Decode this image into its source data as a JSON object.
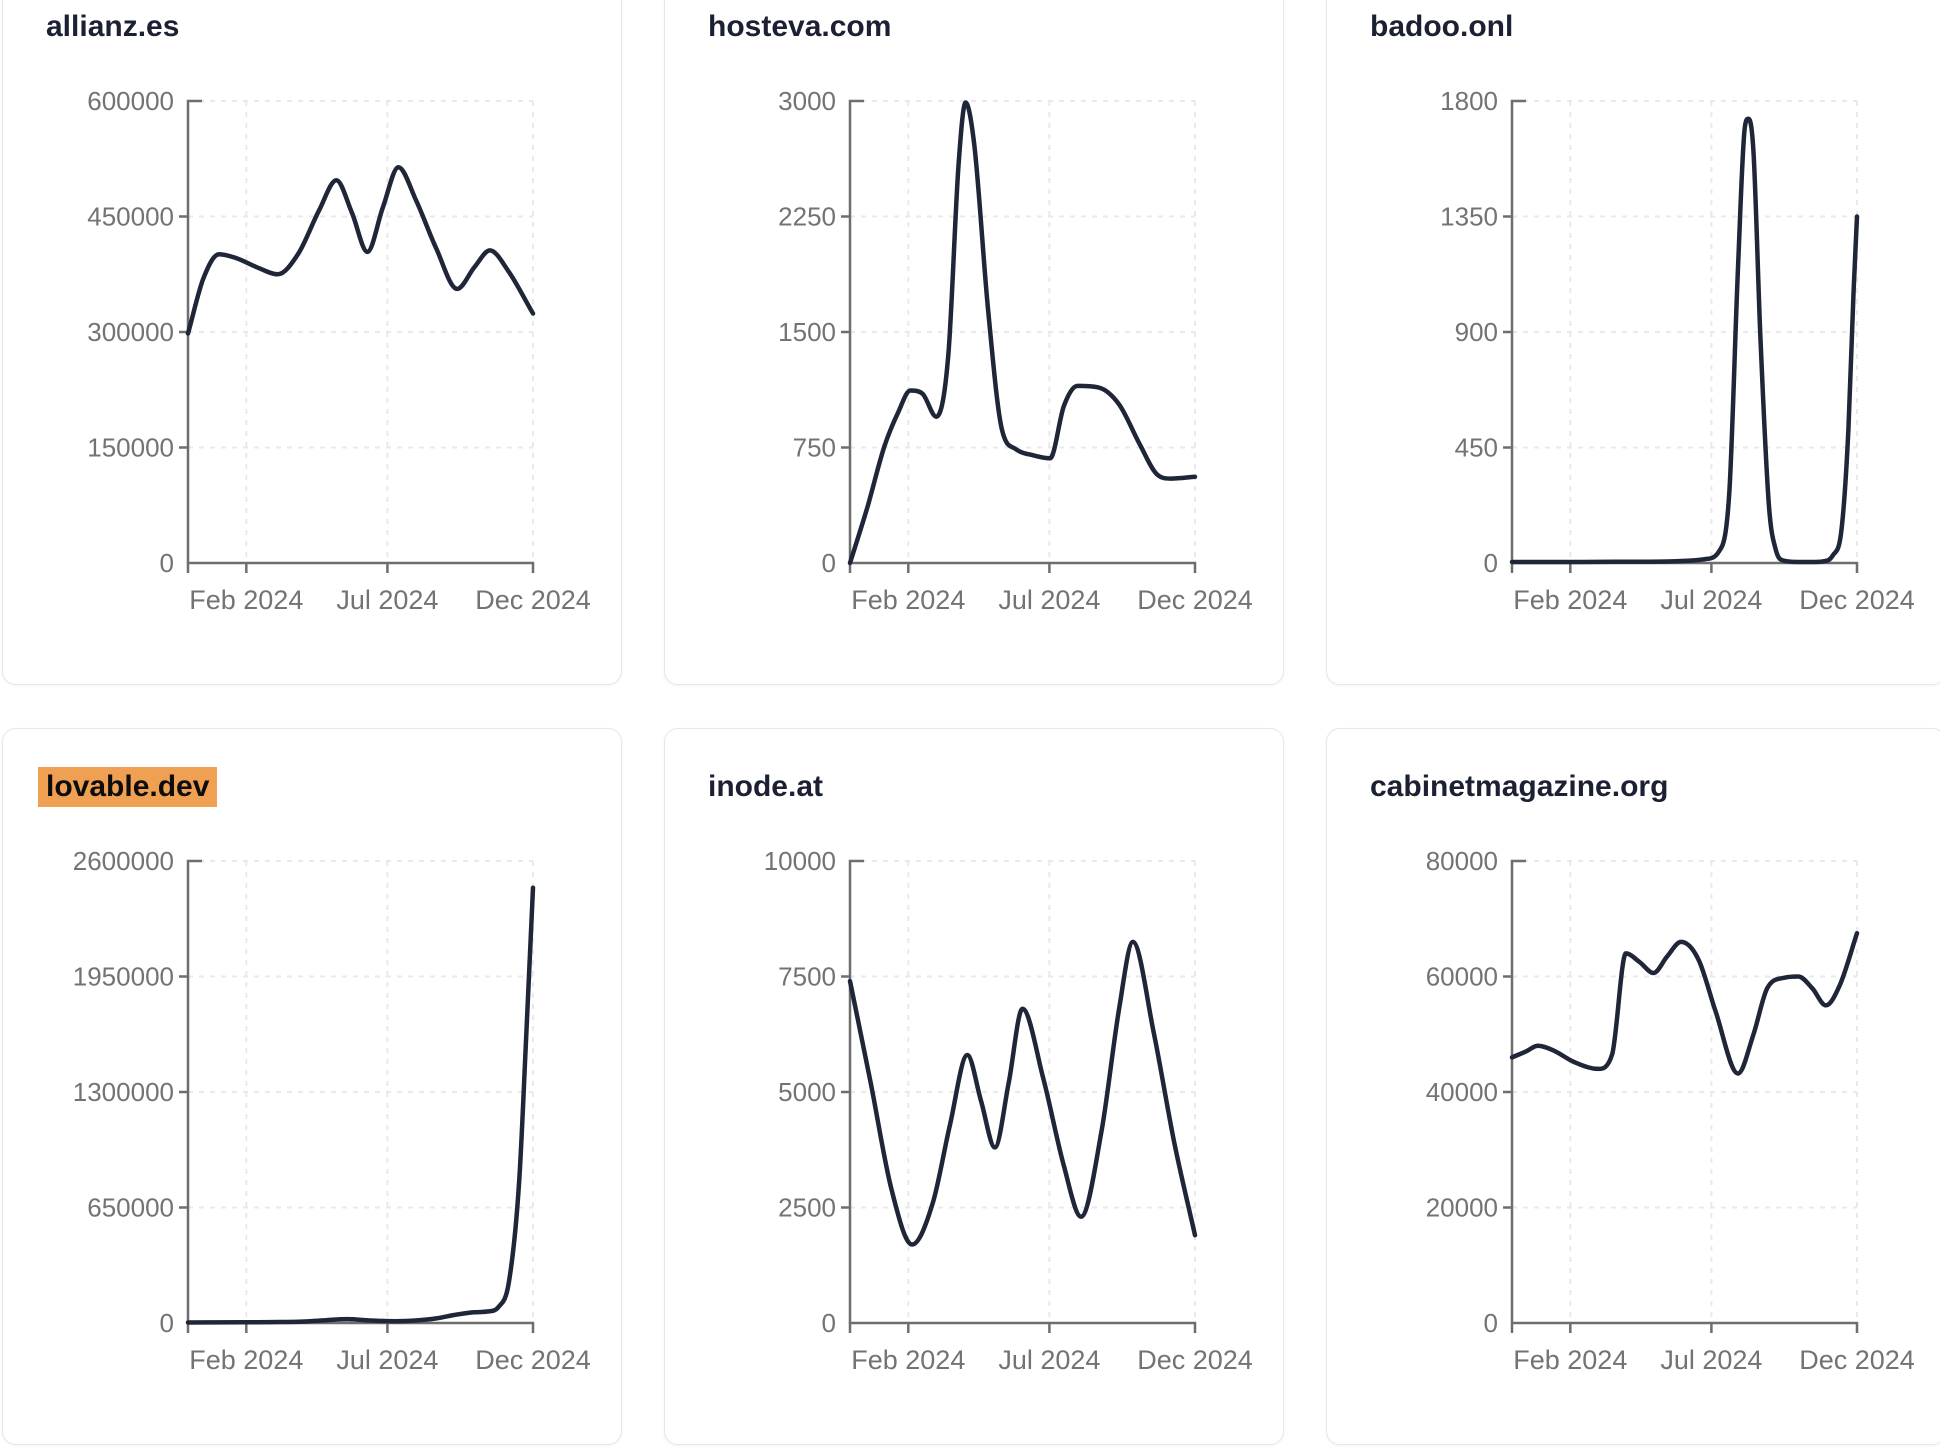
{
  "page": {
    "background": "#ffffff",
    "description": "Grid of six domain-traffic line charts, monthly values Dec 2023 - Dec 2024"
  },
  "style": {
    "line_color": "#1e2638",
    "grid_color": "#e9e9ed",
    "axis_color": "#6e6e6e",
    "tick_label_color": "#737373",
    "title_color": "#1b2132",
    "highlight_color": "#f0a052",
    "highlight_text_color": "#0d0d0d",
    "card_border_color": "#e3e7ef"
  },
  "x_axis": {
    "labels": [
      "Feb 2024",
      "Jul 2024",
      "Dec 2024"
    ],
    "fractions": [
      0.169,
      0.578,
      1
    ]
  },
  "chart_data": [
    {
      "type": "line",
      "title": "allianz.es",
      "highlighted": false,
      "xlabel": "",
      "ylabel": "",
      "ylim": [
        0,
        600000
      ],
      "y_ticks": [
        0,
        150000,
        300000,
        450000,
        600000
      ],
      "x_tick_labels": [
        "Feb 2024",
        "Jul 2024",
        "Dec 2024"
      ],
      "grid": true,
      "points": [
        [
          0,
          298000
        ],
        [
          0.045,
          370000
        ],
        [
          0.09,
          401000
        ],
        [
          0.14,
          396000
        ],
        [
          0.2,
          384000
        ],
        [
          0.26,
          375000
        ],
        [
          0.32,
          402000
        ],
        [
          0.38,
          458000
        ],
        [
          0.43,
          497000
        ],
        [
          0.475,
          455000
        ],
        [
          0.52,
          404000
        ],
        [
          0.565,
          462000
        ],
        [
          0.61,
          514000
        ],
        [
          0.66,
          472000
        ],
        [
          0.72,
          408000
        ],
        [
          0.78,
          356000
        ],
        [
          0.83,
          384000
        ],
        [
          0.875,
          406000
        ],
        [
          0.93,
          378000
        ],
        [
          1,
          324000
        ]
      ]
    },
    {
      "type": "line",
      "title": "hosteva.com",
      "highlighted": false,
      "xlabel": "",
      "ylabel": "",
      "ylim": [
        0,
        3000
      ],
      "y_ticks": [
        0,
        750,
        1500,
        2250,
        3000
      ],
      "x_tick_labels": [
        "Feb 2024",
        "Jul 2024",
        "Dec 2024"
      ],
      "grid": true,
      "points": [
        [
          0,
          0
        ],
        [
          0.05,
          360
        ],
        [
          0.1,
          760
        ],
        [
          0.14,
          980
        ],
        [
          0.175,
          1120
        ],
        [
          0.21,
          1100
        ],
        [
          0.25,
          950
        ],
        [
          0.285,
          1350
        ],
        [
          0.315,
          2600
        ],
        [
          0.335,
          2990
        ],
        [
          0.36,
          2720
        ],
        [
          0.4,
          1650
        ],
        [
          0.44,
          870
        ],
        [
          0.48,
          740
        ],
        [
          0.53,
          700
        ],
        [
          0.58,
          680
        ],
        [
          0.62,
          1020
        ],
        [
          0.66,
          1150
        ],
        [
          0.72,
          1140
        ],
        [
          0.78,
          1030
        ],
        [
          0.84,
          770
        ],
        [
          0.89,
          575
        ],
        [
          0.93,
          548
        ],
        [
          1,
          560
        ]
      ]
    },
    {
      "type": "line",
      "title": "badoo.onl",
      "highlighted": false,
      "xlabel": "",
      "ylabel": "",
      "ylim": [
        0,
        1800
      ],
      "y_ticks": [
        0,
        450,
        900,
        1350,
        1800
      ],
      "x_tick_labels": [
        "Feb 2024",
        "Jul 2024",
        "Dec 2024"
      ],
      "grid": true,
      "points": [
        [
          0,
          4
        ],
        [
          0.1,
          4
        ],
        [
          0.2,
          4
        ],
        [
          0.3,
          5
        ],
        [
          0.4,
          5
        ],
        [
          0.5,
          8
        ],
        [
          0.56,
          15
        ],
        [
          0.6,
          45
        ],
        [
          0.63,
          280
        ],
        [
          0.655,
          1150
        ],
        [
          0.675,
          1700
        ],
        [
          0.685,
          1731
        ],
        [
          0.7,
          1600
        ],
        [
          0.72,
          880
        ],
        [
          0.745,
          220
        ],
        [
          0.765,
          50
        ],
        [
          0.785,
          10
        ],
        [
          0.83,
          4
        ],
        [
          0.87,
          4
        ],
        [
          0.9,
          6
        ],
        [
          0.93,
          30
        ],
        [
          0.955,
          130
        ],
        [
          0.975,
          520
        ],
        [
          0.99,
          1060
        ],
        [
          1,
          1350
        ]
      ]
    },
    {
      "type": "line",
      "title": "lovable.dev",
      "highlighted": true,
      "xlabel": "",
      "ylabel": "",
      "ylim": [
        0,
        2600000
      ],
      "y_ticks": [
        0,
        650000,
        1300000,
        1950000,
        2600000
      ],
      "x_tick_labels": [
        "Feb 2024",
        "Jul 2024",
        "Dec 2024"
      ],
      "grid": true,
      "points": [
        [
          0,
          3000
        ],
        [
          0.08,
          3500
        ],
        [
          0.16,
          4200
        ],
        [
          0.24,
          5200
        ],
        [
          0.32,
          7000
        ],
        [
          0.4,
          16000
        ],
        [
          0.46,
          22000
        ],
        [
          0.53,
          14000
        ],
        [
          0.6,
          10000
        ],
        [
          0.66,
          14000
        ],
        [
          0.72,
          26000
        ],
        [
          0.78,
          48000
        ],
        [
          0.83,
          60000
        ],
        [
          0.87,
          65000
        ],
        [
          0.9,
          90000
        ],
        [
          0.93,
          230000
        ],
        [
          0.96,
          800000
        ],
        [
          0.98,
          1600000
        ],
        [
          1,
          2450000
        ]
      ]
    },
    {
      "type": "line",
      "title": "inode.at",
      "highlighted": false,
      "xlabel": "",
      "ylabel": "",
      "ylim": [
        0,
        10000
      ],
      "y_ticks": [
        0,
        2500,
        5000,
        7500,
        10000
      ],
      "x_tick_labels": [
        "Feb 2024",
        "Jul 2024",
        "Dec 2024"
      ],
      "grid": true,
      "points": [
        [
          0,
          7400
        ],
        [
          0.06,
          5200
        ],
        [
          0.12,
          2900
        ],
        [
          0.18,
          1700
        ],
        [
          0.24,
          2600
        ],
        [
          0.29,
          4300
        ],
        [
          0.34,
          5800
        ],
        [
          0.38,
          4800
        ],
        [
          0.42,
          3800
        ],
        [
          0.46,
          5200
        ],
        [
          0.5,
          6800
        ],
        [
          0.56,
          5300
        ],
        [
          0.62,
          3400
        ],
        [
          0.67,
          2300
        ],
        [
          0.73,
          4200
        ],
        [
          0.78,
          6800
        ],
        [
          0.82,
          8250
        ],
        [
          0.88,
          6300
        ],
        [
          0.94,
          3900
        ],
        [
          1,
          1900
        ]
      ]
    },
    {
      "type": "line",
      "title": "cabinetmagazine.org",
      "highlighted": false,
      "xlabel": "",
      "ylabel": "",
      "ylim": [
        0,
        80000
      ],
      "y_ticks": [
        0,
        20000,
        40000,
        60000,
        80000
      ],
      "x_tick_labels": [
        "Feb 2024",
        "Jul 2024",
        "Dec 2024"
      ],
      "grid": true,
      "points": [
        [
          0,
          46000
        ],
        [
          0.04,
          47000
        ],
        [
          0.075,
          48000
        ],
        [
          0.12,
          47200
        ],
        [
          0.18,
          45200
        ],
        [
          0.25,
          44000
        ],
        [
          0.29,
          46500
        ],
        [
          0.33,
          64000
        ],
        [
          0.37,
          62500
        ],
        [
          0.41,
          60600
        ],
        [
          0.45,
          63500
        ],
        [
          0.49,
          66000
        ],
        [
          0.54,
          63000
        ],
        [
          0.59,
          54000
        ],
        [
          0.655,
          43200
        ],
        [
          0.7,
          50000
        ],
        [
          0.74,
          58000
        ],
        [
          0.79,
          59800
        ],
        [
          0.83,
          60000
        ],
        [
          0.87,
          58000
        ],
        [
          0.91,
          55000
        ],
        [
          0.95,
          58500
        ],
        [
          1,
          67500
        ]
      ]
    }
  ]
}
